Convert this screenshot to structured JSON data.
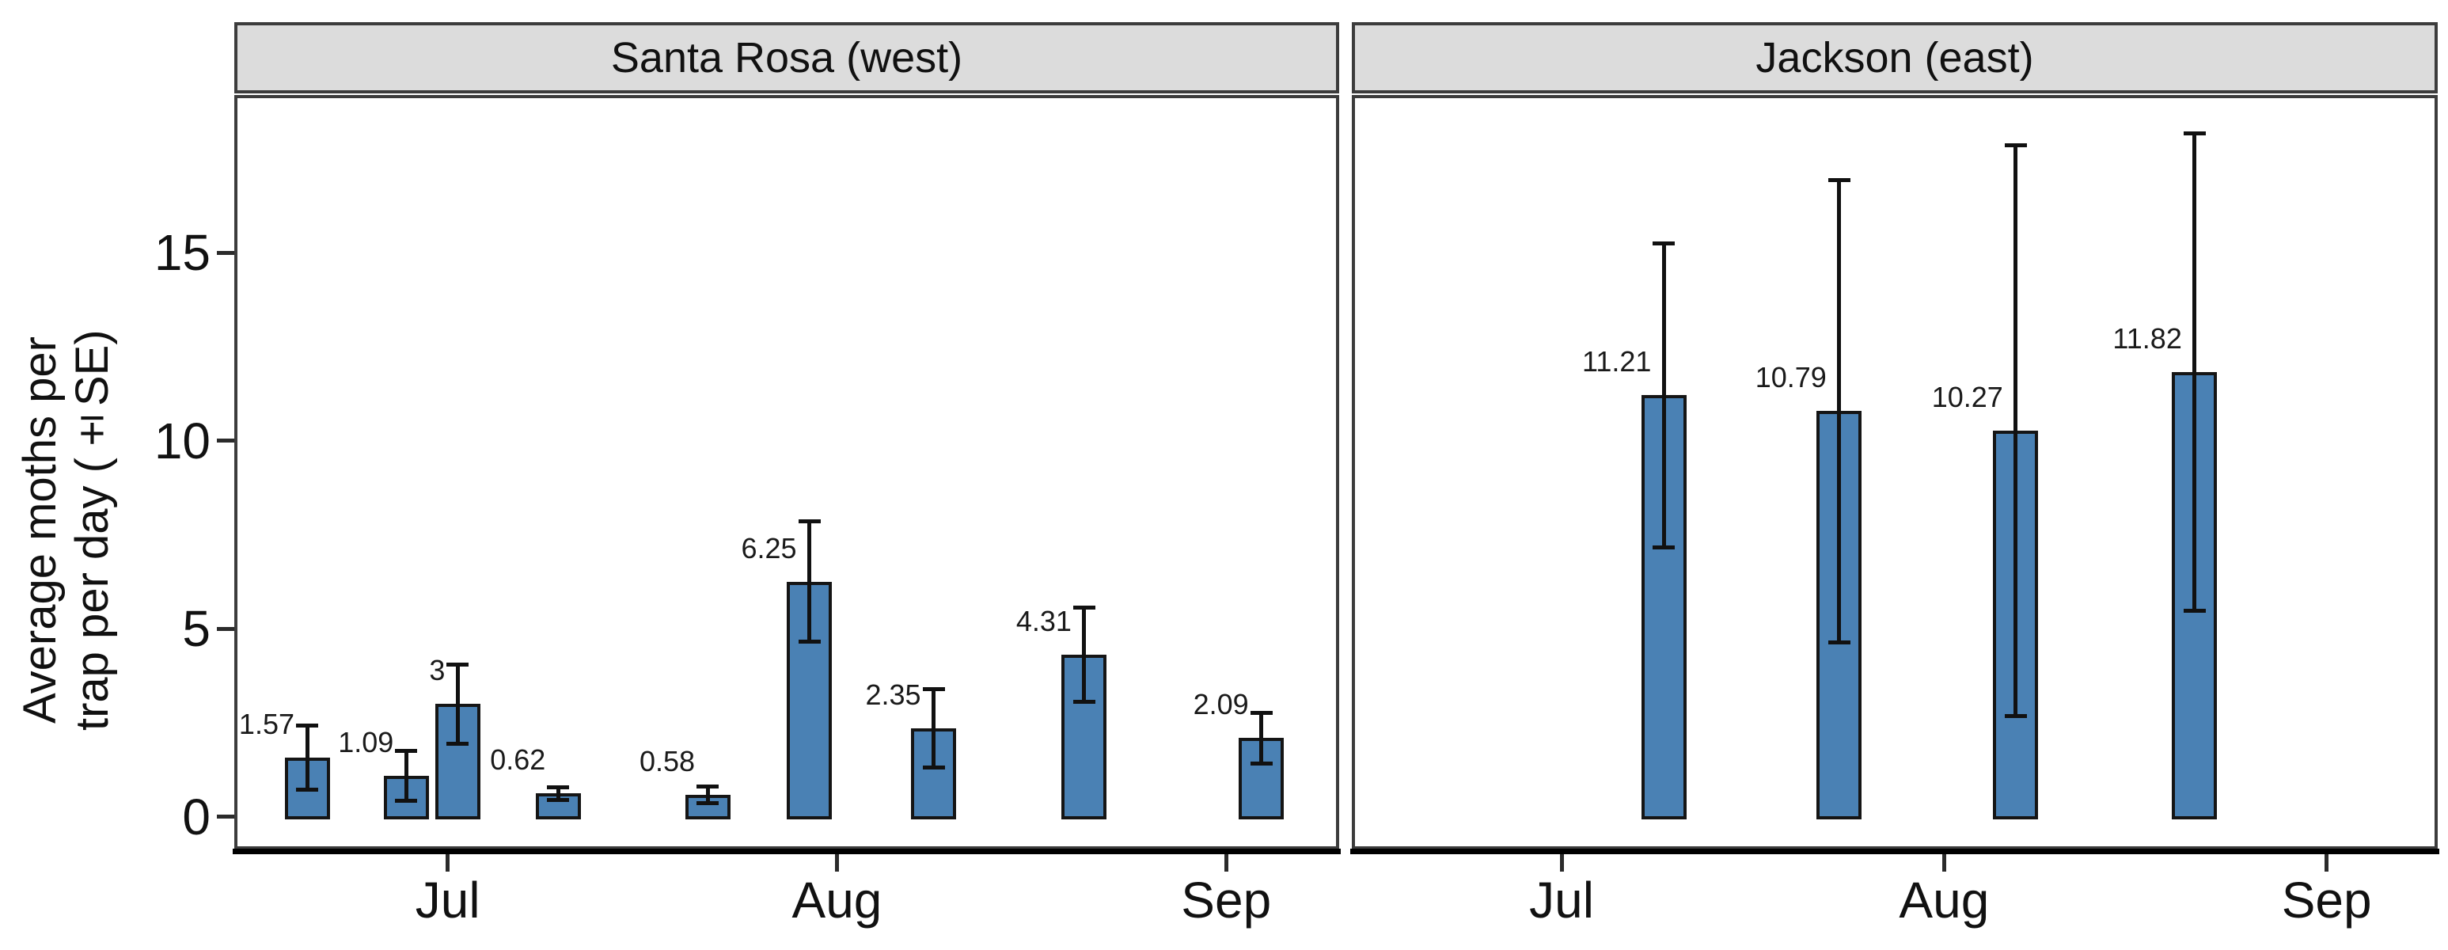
{
  "axes": {
    "y": {
      "title_lines": [
        "Average moths per",
        "trap per day (±SE)"
      ],
      "ticks": [
        0,
        5,
        10,
        15
      ],
      "range": [
        -0.87,
        19.2
      ]
    },
    "x": {
      "ticks": [
        {
          "label": "Jul",
          "day": 0
        },
        {
          "label": "Aug",
          "day": 31
        },
        {
          "label": "Sep",
          "day": 62
        }
      ],
      "range_days": [
        -17,
        71
      ],
      "unit": "days from Jul 1"
    }
  },
  "chart_data": [
    {
      "type": "bar",
      "panel": "Santa Rosa (west)",
      "bars": [
        {
          "x_day": -11.2,
          "value": 1.57,
          "se": 0.85,
          "label": "1.57"
        },
        {
          "x_day": -3.3,
          "value": 1.09,
          "se": 0.66,
          "label": "1.09"
        },
        {
          "x_day": 0.8,
          "value": 3,
          "se": 1.05,
          "label": "3"
        },
        {
          "x_day": 8.8,
          "value": 0.62,
          "se": 0.17,
          "label": "0.62"
        },
        {
          "x_day": 20.7,
          "value": 0.58,
          "se": 0.22,
          "label": "0.58"
        },
        {
          "x_day": 28.8,
          "value": 6.25,
          "se": 1.6,
          "label": "6.25"
        },
        {
          "x_day": 38.7,
          "value": 2.35,
          "se": 1.05,
          "label": "2.35"
        },
        {
          "x_day": 50.7,
          "value": 4.31,
          "se": 1.25,
          "label": "4.31"
        },
        {
          "x_day": 64.8,
          "value": 2.09,
          "se": 0.68,
          "label": "2.09"
        }
      ]
    },
    {
      "type": "bar",
      "panel": "Jackson (east)",
      "bars": [
        {
          "x_day": 8.3,
          "value": 11.21,
          "se": 4.05,
          "label": "11.21"
        },
        {
          "x_day": 22.5,
          "value": 10.79,
          "se": 6.15,
          "label": "10.79"
        },
        {
          "x_day": 36.8,
          "value": 10.27,
          "se": 7.6,
          "label": "10.27"
        },
        {
          "x_day": 51.3,
          "value": 11.82,
          "se": 6.35,
          "label": "11.82"
        }
      ]
    }
  ],
  "style": {
    "bar_fill": "#4a81b4",
    "bar_border": "#151515",
    "error_color": "#111111",
    "strip_fill": "#dcdcdc",
    "strip_border": "#3c3c3c",
    "panel_border": "#3c3c3c",
    "axis_line": "#000000",
    "text_color": "#111111",
    "background": "#ffffff"
  }
}
